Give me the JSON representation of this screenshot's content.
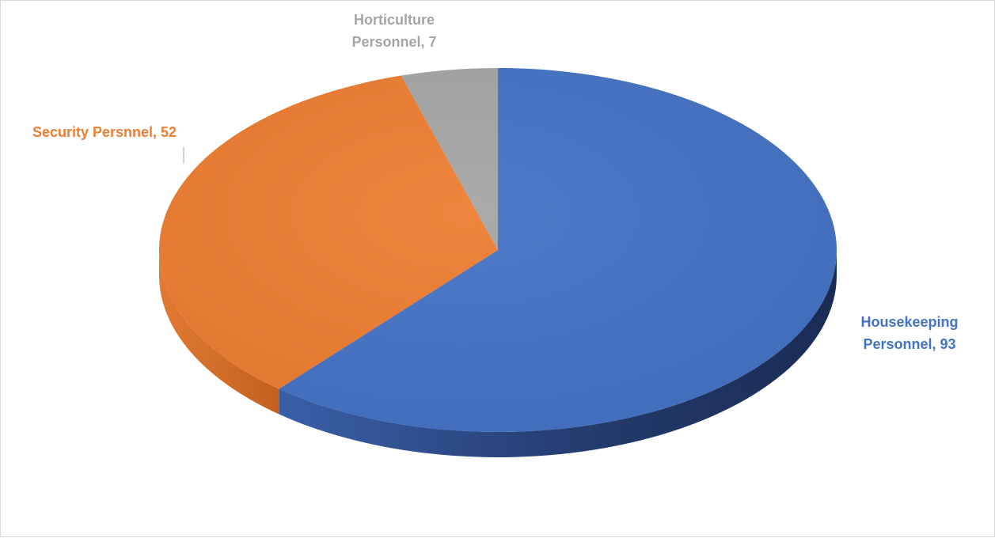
{
  "chart_data": {
    "type": "pie",
    "title": "",
    "style": "3d",
    "slices": [
      {
        "name": "Housekeeping Personnel",
        "value": 93,
        "label_lines": [
          "Housekeeping",
          "Personnel, 93"
        ],
        "color": "#4472C4"
      },
      {
        "name": "Security Persnnel",
        "value": 52,
        "label_lines": [
          "Security Persnnel, 52"
        ],
        "color": "#ED7D31"
      },
      {
        "name": "Horticulture Personnel",
        "value": 7,
        "label_lines": [
          "Horticulture",
          "Personnel, 7"
        ],
        "color": "#A5A5A5"
      }
    ],
    "legend": "none"
  }
}
